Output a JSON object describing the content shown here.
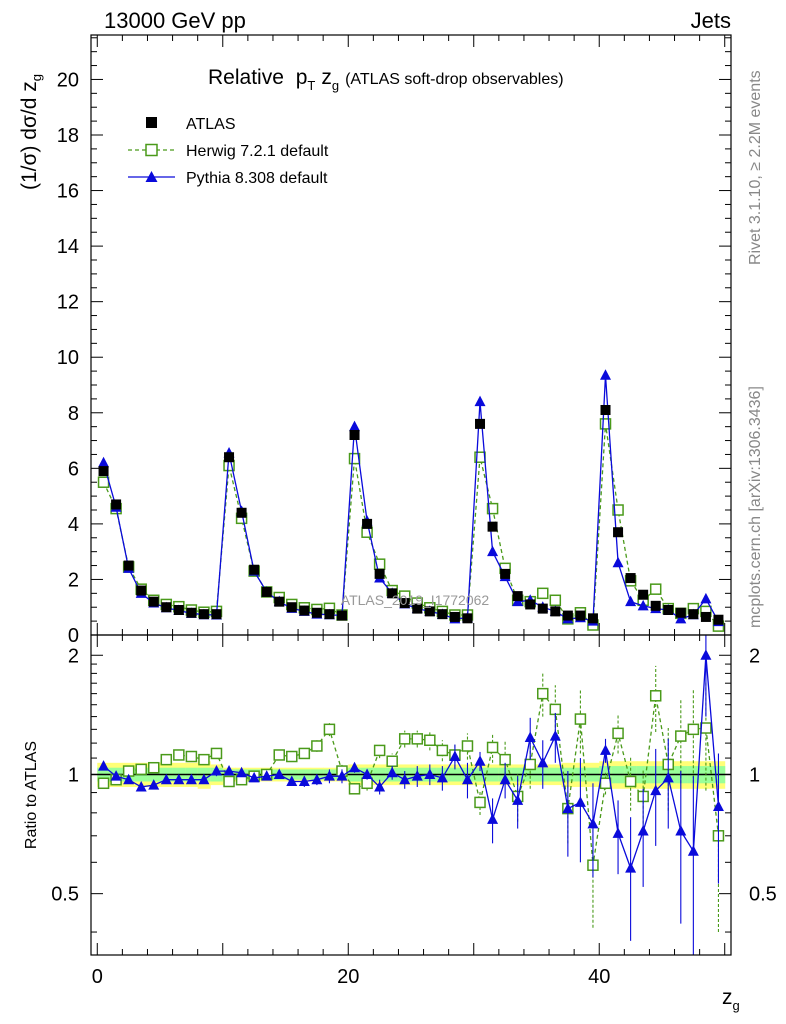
{
  "header": {
    "left": "13000 GeV pp",
    "right": "Jets"
  },
  "side_texts": {
    "rivet": "Rivet 3.1.10, ≥ 2.2M events",
    "mcplots": "mcplots.cern.ch [arXiv:1306.3436]"
  },
  "watermark": "ATLAS_2019_I1772062",
  "colors": {
    "data": "#000000",
    "herwig": "#4a9a1a",
    "pythia": "#0a0adb",
    "band_inner": "#99ff99",
    "band_outer": "#ffff77",
    "frame": "#000000"
  },
  "chart_data": [
    {
      "type": "line",
      "title": "Relative",
      "title_math": {
        "p": "p",
        "p_sub": "T",
        "z": "z",
        "z_sub": "g"
      },
      "title_suffix": "(ATLAS soft-drop observables)",
      "ylabel": "(1/σ) dσ/d z",
      "ylabel_sub": "g",
      "xlim": [
        -0.5,
        50.5
      ],
      "ylim": [
        0,
        21.6
      ],
      "y_ticks": [
        0,
        2,
        4,
        6,
        8,
        10,
        12,
        14,
        16,
        18,
        20
      ],
      "y_tick_labels": [
        "0",
        "2",
        "4",
        "6",
        "8",
        "10",
        "12",
        "14",
        "16",
        "18",
        "20"
      ],
      "legend_position": "top-left",
      "series": [
        {
          "name": "ATLAS",
          "marker": "filled-square",
          "x": [
            0.5,
            1.5,
            2.5,
            3.5,
            4.5,
            5.5,
            6.5,
            7.5,
            8.5,
            9.5,
            10.5,
            11.5,
            12.5,
            13.5,
            14.5,
            15.5,
            16.5,
            17.5,
            18.5,
            19.5,
            20.5,
            21.5,
            22.5,
            23.5,
            24.5,
            25.5,
            26.5,
            27.5,
            28.5,
            29.5,
            30.5,
            31.5,
            32.5,
            33.5,
            34.5,
            35.5,
            36.5,
            37.5,
            38.5,
            39.5,
            40.5,
            41.5,
            42.5,
            43.5,
            44.5,
            45.5,
            46.5,
            47.5,
            48.5,
            49.5
          ],
          "values": [
            5.9,
            4.7,
            2.5,
            1.6,
            1.2,
            1.0,
            0.9,
            0.8,
            0.75,
            0.75,
            6.4,
            4.4,
            2.35,
            1.55,
            1.2,
            1.0,
            0.88,
            0.8,
            0.75,
            0.7,
            7.2,
            4.0,
            2.2,
            1.5,
            1.15,
            0.95,
            0.85,
            0.75,
            0.65,
            0.6,
            7.6,
            3.9,
            2.2,
            1.4,
            1.1,
            0.95,
            0.85,
            0.7,
            0.7,
            0.6,
            8.1,
            3.7,
            2.05,
            1.45,
            1.05,
            0.9,
            0.8,
            0.75,
            0.65,
            0.55
          ]
        },
        {
          "name": "Herwig 7.2.1 default",
          "marker": "open-square",
          "line": "dashed",
          "x": [
            0.5,
            1.5,
            2.5,
            3.5,
            4.5,
            5.5,
            6.5,
            7.5,
            8.5,
            9.5,
            10.5,
            11.5,
            12.5,
            13.5,
            14.5,
            15.5,
            16.5,
            17.5,
            18.5,
            19.5,
            20.5,
            21.5,
            22.5,
            23.5,
            24.5,
            25.5,
            26.5,
            27.5,
            28.5,
            29.5,
            30.5,
            31.5,
            32.5,
            33.5,
            34.5,
            35.5,
            36.5,
            37.5,
            38.5,
            39.5,
            40.5,
            41.5,
            42.5,
            43.5,
            44.5,
            45.5,
            46.5,
            47.5,
            48.5,
            49.5
          ],
          "values": [
            5.5,
            4.55,
            2.45,
            1.65,
            1.25,
            1.1,
            1.02,
            0.9,
            0.82,
            0.85,
            6.1,
            4.2,
            2.3,
            1.55,
            1.35,
            1.1,
            0.98,
            0.92,
            0.96,
            0.72,
            6.35,
            3.7,
            2.55,
            1.6,
            1.4,
            1.15,
            0.98,
            0.85,
            0.72,
            0.72,
            6.4,
            4.55,
            2.4,
            1.25,
            1.2,
            1.5,
            1.25,
            0.58,
            0.8,
            0.36,
            7.6,
            4.5,
            1.95,
            1.25,
            1.65,
            0.95,
            0.78,
            0.95,
            0.85,
            0.32
          ]
        },
        {
          "name": "Pythia 8.308 default",
          "marker": "filled-triangle",
          "x": [
            0.5,
            1.5,
            2.5,
            3.5,
            4.5,
            5.5,
            6.5,
            7.5,
            8.5,
            9.5,
            10.5,
            11.5,
            12.5,
            13.5,
            14.5,
            15.5,
            16.5,
            17.5,
            18.5,
            19.5,
            20.5,
            21.5,
            22.5,
            23.5,
            24.5,
            25.5,
            26.5,
            27.5,
            28.5,
            29.5,
            30.5,
            31.5,
            32.5,
            33.5,
            34.5,
            35.5,
            36.5,
            37.5,
            38.5,
            39.5,
            40.5,
            41.5,
            42.5,
            43.5,
            44.5,
            45.5,
            46.5,
            47.5,
            48.5,
            49.5
          ],
          "values": [
            6.2,
            4.6,
            2.4,
            1.5,
            1.15,
            0.98,
            0.88,
            0.78,
            0.73,
            0.72,
            6.55,
            4.45,
            2.3,
            1.55,
            1.2,
            0.96,
            0.85,
            0.75,
            0.73,
            0.7,
            7.5,
            4.1,
            2.05,
            1.5,
            1.12,
            0.95,
            0.85,
            0.74,
            0.58,
            0.62,
            8.4,
            3.0,
            2.1,
            1.2,
            1.25,
            1.0,
            0.85,
            0.58,
            0.62,
            0.5,
            9.35,
            2.6,
            1.2,
            1.05,
            0.95,
            0.9,
            0.58,
            0.73,
            1.3,
            0.48
          ]
        }
      ]
    },
    {
      "type": "line",
      "ylabel": "Ratio to ATLAS",
      "xlabel": "z",
      "xlabel_sub": "g",
      "xlim": [
        -0.5,
        50.5
      ],
      "ylim": [
        0.35,
        2.25
      ],
      "y_scale": "log",
      "y_ticks": [
        0.5,
        1,
        2
      ],
      "y_tick_labels": [
        "0.5",
        "1",
        "2"
      ],
      "x_ticks": [
        0,
        20,
        40
      ],
      "x_tick_labels": [
        "0",
        "20",
        "40"
      ],
      "band_inner_halfwidth": [
        0.04,
        0.04,
        0.04,
        0.04,
        0.04,
        0.04,
        0.04,
        0.04,
        0.04,
        0.04,
        0.03,
        0.03,
        0.03,
        0.03,
        0.03,
        0.03,
        0.03,
        0.03,
        0.03,
        0.03,
        0.04,
        0.04,
        0.04,
        0.04,
        0.04,
        0.04,
        0.04,
        0.04,
        0.04,
        0.04,
        0.04,
        0.04,
        0.04,
        0.04,
        0.04,
        0.04,
        0.04,
        0.04,
        0.04,
        0.04,
        0.05,
        0.05,
        0.05,
        0.05,
        0.05,
        0.05,
        0.05,
        0.05,
        0.05,
        0.05
      ],
      "band_outer_halfwidth": [
        0.07,
        0.07,
        0.07,
        0.07,
        0.07,
        0.07,
        0.07,
        0.07,
        0.08,
        0.06,
        0.04,
        0.04,
        0.04,
        0.04,
        0.04,
        0.04,
        0.04,
        0.04,
        0.04,
        0.04,
        0.06,
        0.06,
        0.06,
        0.06,
        0.06,
        0.06,
        0.06,
        0.06,
        0.06,
        0.06,
        0.06,
        0.06,
        0.06,
        0.06,
        0.06,
        0.06,
        0.06,
        0.07,
        0.07,
        0.07,
        0.08,
        0.08,
        0.08,
        0.08,
        0.08,
        0.08,
        0.08,
        0.08,
        0.08,
        0.08
      ],
      "series": [
        {
          "name": "Herwig 7.2.1 default",
          "marker": "open-square",
          "line": "dashed",
          "x": [
            0.5,
            1.5,
            2.5,
            3.5,
            4.5,
            5.5,
            6.5,
            7.5,
            8.5,
            9.5,
            10.5,
            11.5,
            12.5,
            13.5,
            14.5,
            15.5,
            16.5,
            17.5,
            18.5,
            19.5,
            20.5,
            21.5,
            22.5,
            23.5,
            24.5,
            25.5,
            26.5,
            27.5,
            28.5,
            29.5,
            30.5,
            31.5,
            32.5,
            33.5,
            34.5,
            35.5,
            36.5,
            37.5,
            38.5,
            39.5,
            40.5,
            41.5,
            42.5,
            43.5,
            44.5,
            45.5,
            46.5,
            47.5,
            48.5,
            49.5
          ],
          "values": [
            0.95,
            0.97,
            1.02,
            1.03,
            1.04,
            1.09,
            1.12,
            1.11,
            1.09,
            1.13,
            0.96,
            0.97,
            0.99,
            1.0,
            1.12,
            1.11,
            1.13,
            1.18,
            1.3,
            1.02,
            0.92,
            0.95,
            1.15,
            1.08,
            1.23,
            1.23,
            1.22,
            1.15,
            1.12,
            1.18,
            0.85,
            1.17,
            1.09,
            0.88,
            1.06,
            1.6,
            1.46,
            0.82,
            1.38,
            0.59,
            0.95,
            1.27,
            0.96,
            0.88,
            1.58,
            1.06,
            1.25,
            1.3,
            1.31,
            0.7
          ],
          "err_low": [
            0.02,
            0.02,
            0.02,
            0.02,
            0.02,
            0.02,
            0.02,
            0.03,
            0.03,
            0.03,
            0.02,
            0.02,
            0.02,
            0.02,
            0.03,
            0.03,
            0.03,
            0.04,
            0.05,
            0.04,
            0.03,
            0.04,
            0.05,
            0.05,
            0.06,
            0.06,
            0.07,
            0.07,
            0.08,
            0.09,
            0.06,
            0.1,
            0.12,
            0.12,
            0.14,
            0.2,
            0.22,
            0.15,
            0.25,
            0.18,
            0.06,
            0.14,
            0.15,
            0.15,
            0.3,
            0.25,
            0.3,
            0.35,
            0.4,
            0.3
          ],
          "err_high": [
            0.02,
            0.02,
            0.02,
            0.02,
            0.02,
            0.02,
            0.02,
            0.03,
            0.03,
            0.03,
            0.02,
            0.02,
            0.02,
            0.02,
            0.03,
            0.03,
            0.03,
            0.04,
            0.05,
            0.04,
            0.03,
            0.04,
            0.05,
            0.05,
            0.06,
            0.06,
            0.07,
            0.07,
            0.08,
            0.09,
            0.06,
            0.1,
            0.12,
            0.12,
            0.14,
            0.2,
            0.22,
            0.15,
            0.25,
            0.18,
            0.06,
            0.14,
            0.15,
            0.15,
            0.3,
            0.25,
            0.3,
            0.35,
            0.4,
            0.3
          ]
        },
        {
          "name": "Pythia 8.308 default",
          "marker": "filled-triangle",
          "x": [
            0.5,
            1.5,
            2.5,
            3.5,
            4.5,
            5.5,
            6.5,
            7.5,
            8.5,
            9.5,
            10.5,
            11.5,
            12.5,
            13.5,
            14.5,
            15.5,
            16.5,
            17.5,
            18.5,
            19.5,
            20.5,
            21.5,
            22.5,
            23.5,
            24.5,
            25.5,
            26.5,
            27.5,
            28.5,
            29.5,
            30.5,
            31.5,
            32.5,
            33.5,
            34.5,
            35.5,
            36.5,
            37.5,
            38.5,
            39.5,
            40.5,
            41.5,
            42.5,
            43.5,
            44.5,
            45.5,
            46.5,
            47.5,
            48.5,
            49.5
          ],
          "values": [
            1.05,
            0.99,
            0.97,
            0.93,
            0.94,
            0.97,
            0.97,
            0.97,
            0.97,
            1.02,
            1.02,
            1.01,
            0.98,
            0.99,
            1.0,
            0.96,
            0.96,
            0.97,
            0.99,
            0.99,
            1.04,
            1.0,
            0.93,
            1.01,
            0.97,
            0.99,
            1.0,
            0.98,
            1.11,
            0.97,
            1.08,
            0.77,
            0.97,
            0.86,
            1.24,
            1.07,
            1.25,
            0.82,
            0.85,
            0.75,
            1.15,
            0.71,
            0.58,
            0.72,
            0.91,
            0.98,
            0.72,
            0.64,
            2.0,
            0.83
          ],
          "err_low": [
            0.02,
            0.02,
            0.02,
            0.02,
            0.02,
            0.02,
            0.02,
            0.02,
            0.02,
            0.03,
            0.02,
            0.02,
            0.02,
            0.02,
            0.02,
            0.02,
            0.03,
            0.03,
            0.04,
            0.04,
            0.03,
            0.03,
            0.04,
            0.04,
            0.05,
            0.06,
            0.06,
            0.07,
            0.08,
            0.1,
            0.06,
            0.1,
            0.1,
            0.13,
            0.15,
            0.15,
            0.18,
            0.2,
            0.25,
            0.2,
            0.08,
            0.15,
            0.2,
            0.2,
            0.25,
            0.25,
            0.3,
            0.35,
            0.6,
            0.3
          ],
          "err_high": [
            0.02,
            0.02,
            0.02,
            0.02,
            0.02,
            0.02,
            0.02,
            0.02,
            0.02,
            0.03,
            0.02,
            0.02,
            0.02,
            0.02,
            0.02,
            0.02,
            0.03,
            0.03,
            0.04,
            0.04,
            0.03,
            0.03,
            0.04,
            0.04,
            0.05,
            0.06,
            0.06,
            0.07,
            0.08,
            0.1,
            0.06,
            0.1,
            0.1,
            0.13,
            0.15,
            0.15,
            0.18,
            0.2,
            0.25,
            0.2,
            0.08,
            0.15,
            0.2,
            0.2,
            0.25,
            0.25,
            0.3,
            0.35,
            0.6,
            0.3
          ]
        }
      ]
    }
  ]
}
